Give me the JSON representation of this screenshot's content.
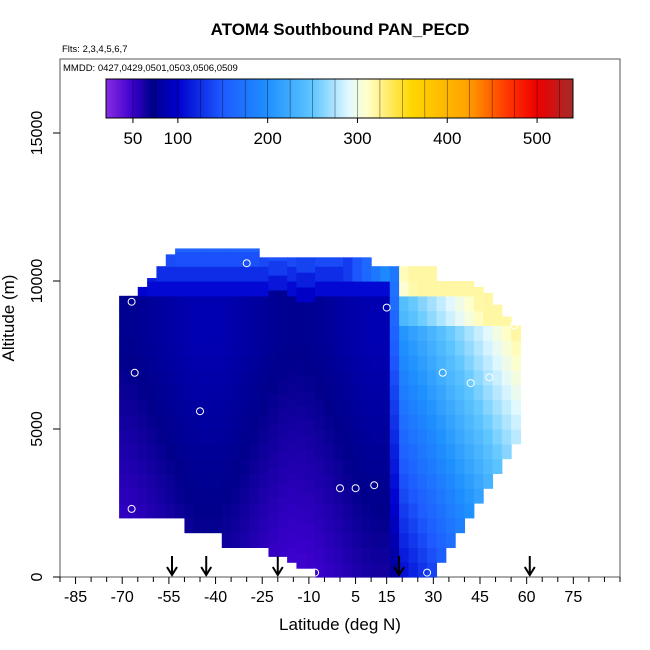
{
  "chart_data": {
    "type": "heatmap",
    "title": "ATOM4 Southbound PAN_PECD",
    "flights_label": "Flts: 2,3,4,5,6,7",
    "dates_label": "MMDD: 0427,0429,0501,0503,0506,0509",
    "xlabel": "Latitude (deg N)",
    "ylabel": "Altitude (m)",
    "xlim": [
      -90,
      90
    ],
    "ylim": [
      0,
      17500
    ],
    "x_ticks": [
      -85,
      -70,
      -55,
      -40,
      -25,
      -10,
      5,
      15,
      30,
      45,
      60,
      75
    ],
    "x_minor_ticks": [
      -90,
      -80,
      -75,
      -65,
      -60,
      -50,
      -45,
      -35,
      -30,
      -20,
      -15,
      -5,
      0,
      10,
      20,
      25,
      35,
      40,
      50,
      55,
      65,
      70,
      80,
      85,
      90
    ],
    "y_ticks": [
      0,
      5000,
      10000,
      15000
    ],
    "colorbar": {
      "range": [
        20,
        540
      ],
      "tick_labels": [
        50,
        100,
        200,
        300,
        400,
        500
      ],
      "stops": [
        {
          "v": 20,
          "c": "#8a2be2"
        },
        {
          "v": 50,
          "c": "#3a00cc"
        },
        {
          "v": 70,
          "c": "#00008b"
        },
        {
          "v": 100,
          "c": "#0000cd"
        },
        {
          "v": 150,
          "c": "#1e5aff"
        },
        {
          "v": 200,
          "c": "#1e90ff"
        },
        {
          "v": 250,
          "c": "#5fc6ff"
        },
        {
          "v": 290,
          "c": "#e0f8ff"
        },
        {
          "v": 310,
          "c": "#ffffcc"
        },
        {
          "v": 360,
          "c": "#ffd700"
        },
        {
          "v": 420,
          "c": "#ffa500"
        },
        {
          "v": 470,
          "c": "#ff3000"
        },
        {
          "v": 500,
          "c": "#ee0000"
        },
        {
          "v": 540,
          "c": "#a52a2a"
        }
      ]
    },
    "curtain": {
      "lat_edges": [
        -71,
        -68,
        -65,
        -62,
        -59,
        -56,
        -53,
        -50,
        -47,
        -44,
        -41,
        -38,
        -35,
        -32,
        -29,
        -26,
        -23,
        -20,
        -17,
        -14,
        -11,
        -8,
        -5,
        -2,
        1,
        4,
        7,
        10,
        13,
        16,
        19,
        22,
        25,
        28,
        31,
        34,
        37,
        40,
        43,
        46,
        49,
        52,
        55,
        58
      ],
      "top_alt": [
        9500,
        9500,
        9800,
        10100,
        10500,
        10900,
        11100,
        11100,
        11100,
        11100,
        11100,
        11100,
        11100,
        11100,
        11100,
        10800,
        10800,
        10800,
        10800,
        10800,
        10800,
        10800,
        10800,
        10800,
        10800,
        10800,
        10800,
        10500,
        10500,
        10500,
        10500,
        10500,
        10500,
        10500,
        10000,
        10000,
        10000,
        10000,
        9800,
        9600,
        9200,
        8800,
        8500
      ],
      "bottom_alt": [
        2000,
        2000,
        2000,
        2000,
        2000,
        2000,
        2000,
        1500,
        1500,
        1500,
        1500,
        1000,
        1000,
        1000,
        1000,
        1000,
        700,
        700,
        500,
        300,
        300,
        0,
        0,
        0,
        0,
        0,
        0,
        0,
        0,
        0,
        0,
        0,
        0,
        0,
        500,
        1000,
        1500,
        2000,
        2500,
        3000,
        3500,
        4000,
        4500
      ],
      "alt_step": 500,
      "front_lat": 17
    },
    "flight_obs": [
      {
        "lat": -67,
        "alt": 2300
      },
      {
        "lat": -66,
        "alt": 6900
      },
      {
        "lat": -67,
        "alt": 9300
      },
      {
        "lat": -45,
        "alt": 5600
      },
      {
        "lat": -30,
        "alt": 10600
      },
      {
        "lat": -8,
        "alt": 150
      },
      {
        "lat": 0,
        "alt": 3000
      },
      {
        "lat": 5,
        "alt": 3000
      },
      {
        "lat": 11,
        "alt": 3100
      },
      {
        "lat": 15,
        "alt": 9100
      },
      {
        "lat": 28,
        "alt": 150
      },
      {
        "lat": 33,
        "alt": 6900
      },
      {
        "lat": 42,
        "alt": 6550
      },
      {
        "lat": 48,
        "alt": 6750
      },
      {
        "lat": 56,
        "alt": 8500
      }
    ],
    "arrows_lat": [
      -54,
      -43,
      -20,
      19,
      61
    ]
  }
}
